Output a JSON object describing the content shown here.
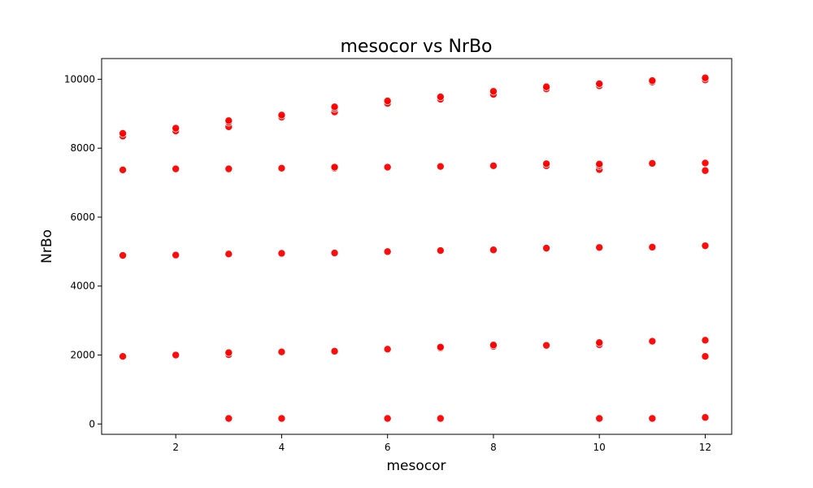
{
  "chart_data": {
    "type": "scatter",
    "title": "mesocor vs NrBo",
    "xlabel": "mesocor",
    "ylabel": "NrBo",
    "xlim": [
      0.6,
      12.5
    ],
    "ylim": [
      -300,
      10600
    ],
    "xticks": [
      2,
      4,
      6,
      8,
      10,
      12
    ],
    "yticks": [
      0,
      2000,
      4000,
      6000,
      8000,
      10000
    ],
    "grid": false,
    "legend": "none",
    "marker_color": "#ff0000",
    "marker_edge_color": "#ffffff",
    "points": [
      {
        "x": 1,
        "y": 8350
      },
      {
        "x": 1,
        "y": 8430
      },
      {
        "x": 1,
        "y": 7370
      },
      {
        "x": 1,
        "y": 4890
      },
      {
        "x": 1,
        "y": 1960
      },
      {
        "x": 2,
        "y": 8500
      },
      {
        "x": 2,
        "y": 8580
      },
      {
        "x": 2,
        "y": 7400
      },
      {
        "x": 2,
        "y": 4900
      },
      {
        "x": 2,
        "y": 2000
      },
      {
        "x": 3,
        "y": 8620
      },
      {
        "x": 3,
        "y": 8750
      },
      {
        "x": 3,
        "y": 8800
      },
      {
        "x": 3,
        "y": 7400
      },
      {
        "x": 3,
        "y": 4930
      },
      {
        "x": 3,
        "y": 2010
      },
      {
        "x": 3,
        "y": 2070
      },
      {
        "x": 3,
        "y": 160
      },
      {
        "x": 4,
        "y": 8900
      },
      {
        "x": 4,
        "y": 8960
      },
      {
        "x": 4,
        "y": 7420
      },
      {
        "x": 4,
        "y": 4950
      },
      {
        "x": 4,
        "y": 2090
      },
      {
        "x": 4,
        "y": 160
      },
      {
        "x": 5,
        "y": 9050
      },
      {
        "x": 5,
        "y": 9150
      },
      {
        "x": 5,
        "y": 9200
      },
      {
        "x": 5,
        "y": 7420
      },
      {
        "x": 5,
        "y": 7450
      },
      {
        "x": 5,
        "y": 4960
      },
      {
        "x": 5,
        "y": 2110
      },
      {
        "x": 6,
        "y": 9300
      },
      {
        "x": 6,
        "y": 9370
      },
      {
        "x": 6,
        "y": 7450
      },
      {
        "x": 6,
        "y": 5000
      },
      {
        "x": 6,
        "y": 2170
      },
      {
        "x": 6,
        "y": 160
      },
      {
        "x": 7,
        "y": 9420
      },
      {
        "x": 7,
        "y": 9490
      },
      {
        "x": 7,
        "y": 7470
      },
      {
        "x": 7,
        "y": 5030
      },
      {
        "x": 7,
        "y": 2200
      },
      {
        "x": 7,
        "y": 2230
      },
      {
        "x": 7,
        "y": 160
      },
      {
        "x": 8,
        "y": 9560
      },
      {
        "x": 8,
        "y": 9650
      },
      {
        "x": 8,
        "y": 7490
      },
      {
        "x": 8,
        "y": 5050
      },
      {
        "x": 8,
        "y": 2250
      },
      {
        "x": 8,
        "y": 2290
      },
      {
        "x": 9,
        "y": 9720
      },
      {
        "x": 9,
        "y": 9780
      },
      {
        "x": 9,
        "y": 7490
      },
      {
        "x": 9,
        "y": 7550
      },
      {
        "x": 9,
        "y": 5100
      },
      {
        "x": 9,
        "y": 2280
      },
      {
        "x": 10,
        "y": 9810
      },
      {
        "x": 10,
        "y": 9870
      },
      {
        "x": 10,
        "y": 7380
      },
      {
        "x": 10,
        "y": 7490
      },
      {
        "x": 10,
        "y": 7540
      },
      {
        "x": 10,
        "y": 5120
      },
      {
        "x": 10,
        "y": 2300
      },
      {
        "x": 10,
        "y": 2360
      },
      {
        "x": 10,
        "y": 160
      },
      {
        "x": 11,
        "y": 9920
      },
      {
        "x": 11,
        "y": 9960
      },
      {
        "x": 11,
        "y": 7560
      },
      {
        "x": 11,
        "y": 5130
      },
      {
        "x": 11,
        "y": 2400
      },
      {
        "x": 11,
        "y": 160
      },
      {
        "x": 12,
        "y": 9980
      },
      {
        "x": 12,
        "y": 10040
      },
      {
        "x": 12,
        "y": 7570
      },
      {
        "x": 12,
        "y": 7350
      },
      {
        "x": 12,
        "y": 5170
      },
      {
        "x": 12,
        "y": 2430
      },
      {
        "x": 12,
        "y": 1960
      },
      {
        "x": 12,
        "y": 190
      }
    ]
  }
}
